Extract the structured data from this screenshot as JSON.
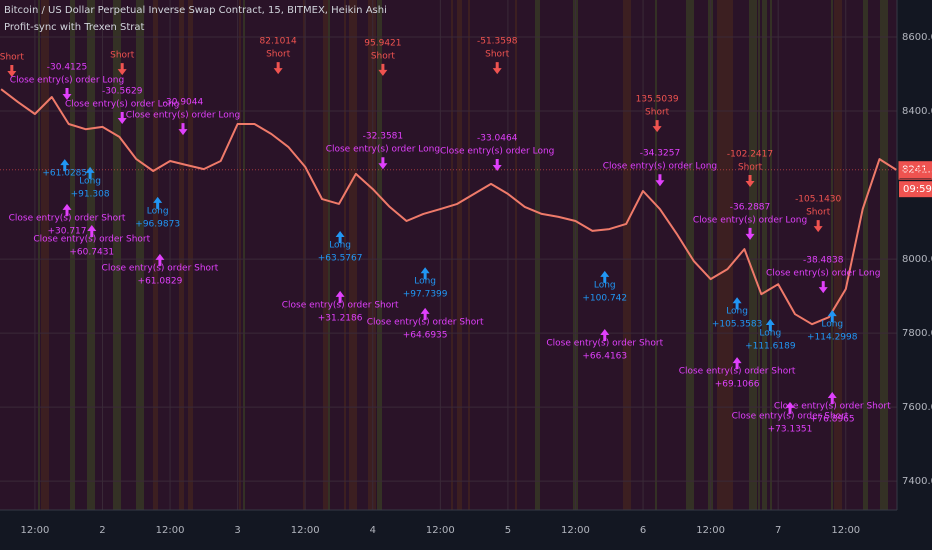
{
  "chart_data": {
    "type": "line",
    "title": "Bitcoin / US Dollar Perpetual Inverse Swap Contract, 15, BITMEX, Heikin Ashi",
    "subtitle": "Profit-sync with Trexen Strat",
    "x": [
      6,
      9,
      12,
      15,
      18,
      21,
      24,
      27,
      30,
      33,
      36,
      39,
      42,
      45,
      48,
      51,
      54,
      57,
      60,
      63,
      66,
      69,
      72,
      75,
      78,
      81,
      84,
      87,
      90,
      93,
      96,
      99,
      102,
      105,
      108,
      111,
      114,
      117,
      120,
      123,
      126,
      129,
      132,
      135,
      138,
      141,
      144,
      147,
      150,
      153,
      156,
      159,
      162,
      165
    ],
    "values": [
      8459,
      8424,
      8392,
      8438,
      8365,
      8351,
      8357,
      8330,
      8270,
      8238,
      8265,
      8254,
      8243,
      8265,
      8365,
      8365,
      8338,
      8303,
      8249,
      8162,
      8149,
      8230,
      8189,
      8141,
      8103,
      8122,
      8135,
      8149,
      8176,
      8203,
      8176,
      8141,
      8122,
      8114,
      8103,
      8076,
      8081,
      8095,
      8184,
      8135,
      8068,
      7995,
      7946,
      7973,
      8027,
      7905,
      7932,
      7851,
      7824,
      7843,
      7919,
      8135,
      8270,
      8241
    ],
    "color": "#ef7a6a",
    "xlim": [
      5.8,
      165.1
    ],
    "ylim": [
      7322,
      8700
    ],
    "xticks": [
      {
        "value": 12,
        "label": "12:00"
      },
      {
        "value": 24,
        "label": "2"
      },
      {
        "value": 36,
        "label": "12:00"
      },
      {
        "value": 48,
        "label": "3"
      },
      {
        "value": 60,
        "label": "12:00"
      },
      {
        "value": 72,
        "label": "4"
      },
      {
        "value": 84,
        "label": "12:00"
      },
      {
        "value": 96,
        "label": "5"
      },
      {
        "value": 108,
        "label": "12:00"
      },
      {
        "value": 120,
        "label": "6"
      },
      {
        "value": 132,
        "label": "12:00"
      },
      {
        "value": 144,
        "label": "7"
      },
      {
        "value": 156,
        "label": "12:00"
      }
    ],
    "yticks": [
      {
        "value": 7400,
        "label": "7400.0"
      },
      {
        "value": 7600,
        "label": "7600.0"
      },
      {
        "value": 7800,
        "label": "7800.0"
      },
      {
        "value": 8000,
        "label": "8000.0"
      },
      {
        "value": 8400,
        "label": "8400.0"
      },
      {
        "value": 8600,
        "label": "8600.0"
      }
    ],
    "grid": true,
    "price_labels": [
      {
        "value": 8241.5,
        "color": "#ef5350"
      },
      {
        "value": 8237.5,
        "color": "#ef5350"
      }
    ],
    "countdown": "09:59",
    "signal_colors": {
      "short": "#ef5350",
      "long": "#2196f3",
      "close-long": "#e040fb",
      "close-short": "#e040fb"
    },
    "signals": [
      {
        "kind": "short",
        "x": 7.9,
        "y": 8546,
        "lines": [
          "Short"
        ]
      },
      {
        "kind": "short",
        "x": 27.5,
        "y": 8551,
        "lines": [
          "Short"
        ]
      },
      {
        "kind": "short",
        "x": 55.2,
        "y": 8589,
        "lines": [
          "82.1014",
          "Short"
        ]
      },
      {
        "kind": "short",
        "x": 73.8,
        "y": 8584,
        "lines": [
          "95.9421",
          "Short"
        ]
      },
      {
        "kind": "short",
        "x": 94.1,
        "y": 8589,
        "lines": [
          "-51.3598",
          "Short"
        ]
      },
      {
        "kind": "short",
        "x": 122.5,
        "y": 8432,
        "lines": [
          "135.5039",
          "Short"
        ]
      },
      {
        "kind": "short",
        "x": 139.0,
        "y": 8284,
        "lines": [
          "-102.2417",
          "Short"
        ]
      },
      {
        "kind": "short",
        "x": 151.1,
        "y": 8162,
        "lines": [
          "-105.1430",
          "Short"
        ]
      },
      {
        "kind": "close-long",
        "x": 17.7,
        "y": 8519,
        "lines": [
          "-30.4125",
          "Close entry(s) order Long"
        ]
      },
      {
        "kind": "close-long",
        "x": 27.5,
        "y": 8454,
        "lines": [
          "-30.5629",
          "Close entry(s) order Long"
        ]
      },
      {
        "kind": "close-long",
        "x": 38.3,
        "y": 8424,
        "lines": [
          "-30.9044",
          "Close entry(s) order Long"
        ]
      },
      {
        "kind": "close-long",
        "x": 73.8,
        "y": 8332,
        "lines": [
          "-32.3581",
          "Close entry(s) order Long"
        ]
      },
      {
        "kind": "close-long",
        "x": 94.1,
        "y": 8327,
        "lines": [
          "-33.0464",
          "Close entry(s) order Long"
        ]
      },
      {
        "kind": "close-long",
        "x": 123.0,
        "y": 8286,
        "lines": [
          "-34.3257",
          "Close entry(s) order Long"
        ]
      },
      {
        "kind": "close-long",
        "x": 139.0,
        "y": 8141,
        "lines": [
          "-36.2887",
          "Close entry(s) order Long"
        ]
      },
      {
        "kind": "close-long",
        "x": 152.0,
        "y": 7997,
        "lines": [
          "-38.4838",
          "Close entry(s) order Long"
        ]
      },
      {
        "kind": "long",
        "x": 17.3,
        "y": 8270,
        "lines": [
          "+61.0285"
        ]
      },
      {
        "kind": "long",
        "x": 21.8,
        "y": 8249,
        "lines": [
          "Long",
          "+91.308"
        ]
      },
      {
        "kind": "long",
        "x": 33.8,
        "y": 8168,
        "lines": [
          "Long",
          "+96.9873"
        ]
      },
      {
        "kind": "long",
        "x": 66.2,
        "y": 8076,
        "lines": [
          "Long",
          "+63.5767"
        ]
      },
      {
        "kind": "long",
        "x": 81.3,
        "y": 7978,
        "lines": [
          "Long",
          "+97.7399"
        ]
      },
      {
        "kind": "long",
        "x": 113.2,
        "y": 7968,
        "lines": [
          "Long",
          "+100.742"
        ]
      },
      {
        "kind": "long",
        "x": 136.7,
        "y": 7897,
        "lines": [
          "Long",
          "+105.3583"
        ]
      },
      {
        "kind": "long",
        "x": 142.6,
        "y": 7838,
        "lines": [
          "Long",
          "+111.6189"
        ]
      },
      {
        "kind": "long",
        "x": 153.6,
        "y": 7862,
        "lines": [
          "Long",
          "+114.2998"
        ]
      },
      {
        "kind": "close-short",
        "x": 17.7,
        "y": 8149,
        "lines": [
          "Close entry(s) order Short",
          "+30.717"
        ]
      },
      {
        "kind": "close-short",
        "x": 22.1,
        "y": 8092,
        "lines": [
          "Close entry(s) order Short",
          "+60.7431"
        ]
      },
      {
        "kind": "close-short",
        "x": 34.2,
        "y": 8014,
        "lines": [
          "Close entry(s) order Short",
          "+61.0829"
        ]
      },
      {
        "kind": "close-short",
        "x": 66.2,
        "y": 7914,
        "lines": [
          "Close entry(s) order Short",
          "+31.2186"
        ]
      },
      {
        "kind": "close-short",
        "x": 81.3,
        "y": 7868,
        "lines": [
          "Close entry(s) order Short",
          "+64.6935"
        ]
      },
      {
        "kind": "close-short",
        "x": 113.2,
        "y": 7811,
        "lines": [
          "Close entry(s) order Short",
          "+66.4163"
        ]
      },
      {
        "kind": "close-short",
        "x": 136.7,
        "y": 7735,
        "lines": [
          "Close entry(s) order Short",
          "+69.1066"
        ]
      },
      {
        "kind": "close-short",
        "x": 146.1,
        "y": 7614,
        "lines": [
          "Close entry(s) order Short",
          "+73.1351"
        ]
      },
      {
        "kind": "close-short",
        "x": 153.6,
        "y": 7641,
        "lines": [
          "Close entry(s) order Short",
          "+76.8965"
        ]
      }
    ]
  }
}
